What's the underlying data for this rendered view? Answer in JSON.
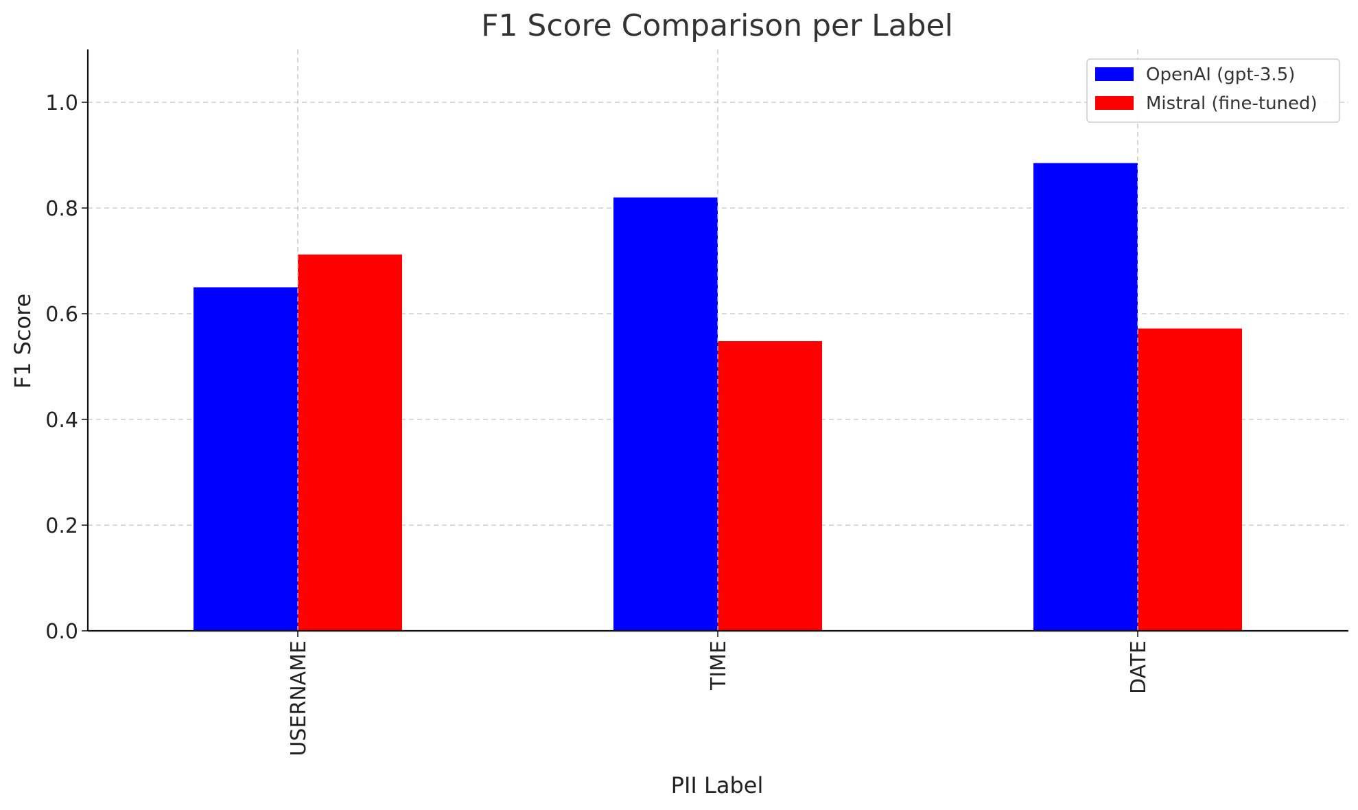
{
  "chart_data": {
    "type": "bar",
    "title": "F1 Score Comparison per Label",
    "xlabel": "PII Label",
    "ylabel": "F1 Score",
    "categories": [
      "USERNAME",
      "TIME",
      "DATE"
    ],
    "series": [
      {
        "name": "OpenAI (gpt-3.5)",
        "values": [
          0.65,
          0.82,
          0.885
        ],
        "color": "#0000ff"
      },
      {
        "name": "Mistral (fine-tuned)",
        "values": [
          0.712,
          0.548,
          0.572
        ],
        "color": "#ff0000"
      }
    ],
    "ylim": [
      0,
      1.1
    ],
    "yticks": [
      0.0,
      0.2,
      0.4,
      0.6,
      0.8,
      1.0
    ],
    "ytick_labels": [
      "0.0",
      "0.2",
      "0.4",
      "0.6",
      "0.8",
      "1.0"
    ],
    "grid": true,
    "legend_position": "top-right"
  }
}
